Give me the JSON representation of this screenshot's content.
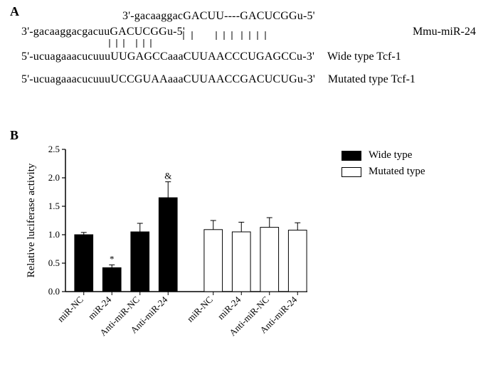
{
  "panelA": {
    "label": "A",
    "sequences": {
      "line1": "3'-gacaaggacGACUU----GACUCGGu-5'",
      "line2_seq": "3'-gacaaggacgacuuGACUCGGu-5'",
      "line3_seq": "5'-ucuagaaacucuuuUUGAGCCaaaCUUAACCCUGAGCCu-3'",
      "line4_seq": "5'-ucuagaaacucuuuUCCGUAAaaaCUUAACCGACUCUGu-3'",
      "label_line2": "Mmu-miR-24",
      "label_line3": "Wide type Tcf-1",
      "label_line4": "Mutated type Tcf-1"
    }
  },
  "panelB": {
    "label": "B",
    "chart": {
      "type": "bar",
      "ylabel": "Relative luciferase activity",
      "ylim": [
        0,
        2.5
      ],
      "ytick_step": 0.5,
      "yticks": [
        "0.0",
        "0.5",
        "1.0",
        "1.5",
        "2.0",
        "2.5"
      ],
      "categories": [
        "miR-NC",
        "miR-24",
        "Anti-miR-NC",
        "Anti-miR-24"
      ],
      "groups": [
        {
          "name": "Wide type",
          "fill": "#000000",
          "values": [
            1.0,
            0.42,
            1.05,
            1.65
          ],
          "errors": [
            0.04,
            0.05,
            0.15,
            0.28
          ],
          "annotations": [
            "",
            "*",
            "",
            "&"
          ]
        },
        {
          "name": "Mutated type",
          "fill": "#ffffff",
          "values": [
            1.09,
            1.05,
            1.13,
            1.08
          ],
          "errors": [
            0.16,
            0.17,
            0.17,
            0.13
          ],
          "annotations": [
            "",
            "",
            "",
            ""
          ]
        }
      ],
      "bar_width": 0.65,
      "axis_color": "#000000",
      "background": "#ffffff",
      "tick_fontsize": 13,
      "label_fontsize": 15,
      "annotation_fontsize": 13
    },
    "legend": [
      {
        "label": "Wide type",
        "fill": "#000000"
      },
      {
        "label": "Mutated type",
        "fill": "#ffffff"
      }
    ]
  }
}
